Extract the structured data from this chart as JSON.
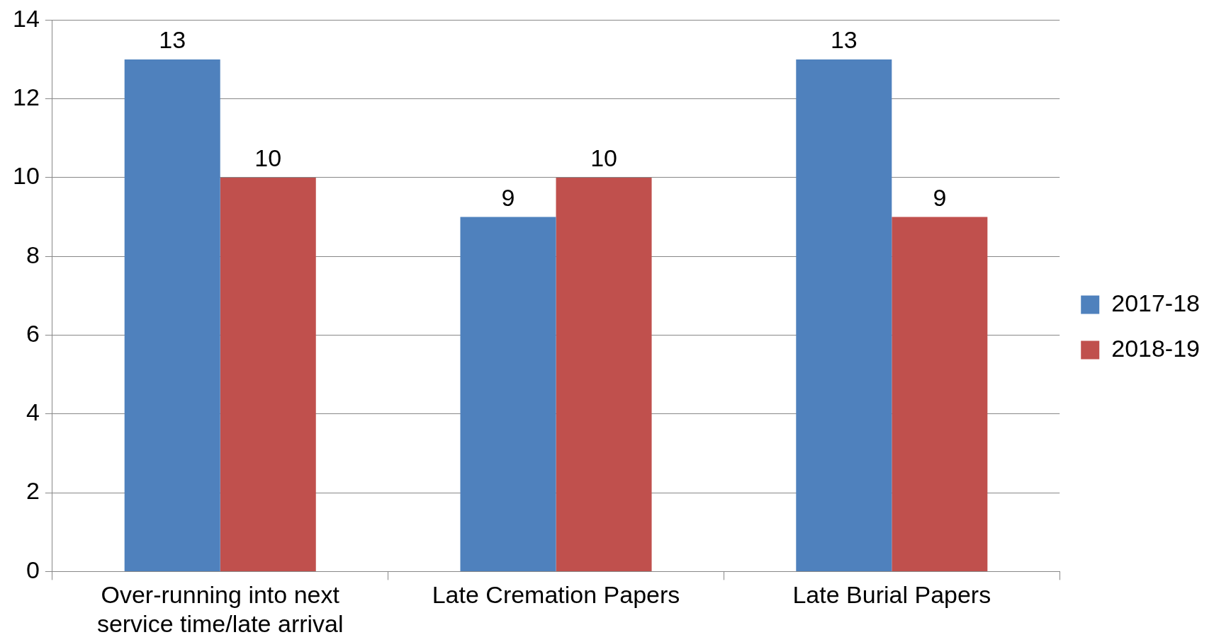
{
  "chart_data": {
    "type": "bar",
    "categories": [
      "Over-running into next service time/late arrival",
      "Late Cremation Papers",
      "Late Burial Papers"
    ],
    "series": [
      {
        "name": "2017-18",
        "color": "#4f81bd",
        "values": [
          13,
          9,
          13
        ]
      },
      {
        "name": "2018-19",
        "color": "#c0504d",
        "values": [
          10,
          10,
          9
        ]
      }
    ],
    "ylim": [
      0,
      14
    ],
    "yticks": [
      0,
      2,
      4,
      6,
      8,
      10,
      12,
      14
    ],
    "grid": "y",
    "legend": "right",
    "data_labels": true
  }
}
